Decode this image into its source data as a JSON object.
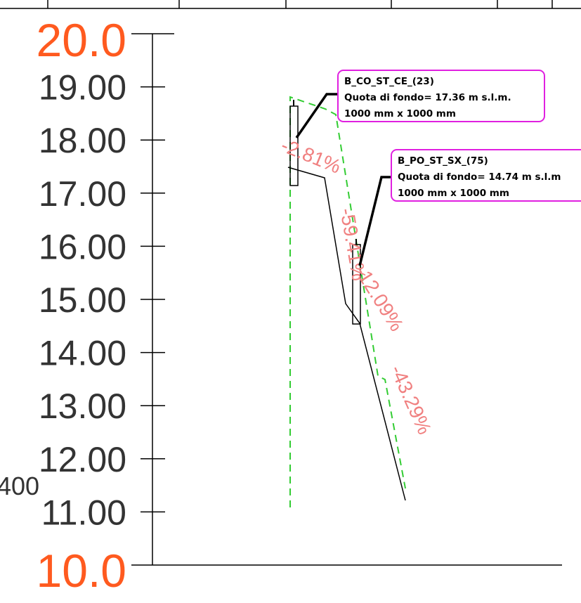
{
  "scale": {
    "major_color": "#ff5a1f",
    "minor_color": "#333333",
    "top_label": "20.0",
    "bottom_label": "10.0",
    "tick_labels": [
      "19.00",
      "18.00",
      "17.00",
      "16.00",
      "15.00",
      "14.00",
      "13.00",
      "12.00",
      "11.00"
    ],
    "side_label": "400"
  },
  "profile": {
    "slope_color": "#f08080",
    "dash_color": "#33cc33",
    "box_border_color": "#e020e0",
    "slopes": [
      "-2.81%",
      "-59.41%",
      "-12.09%",
      "-43.29%"
    ]
  },
  "callouts": [
    {
      "title": "B_CO_ST_CE_(23)",
      "line1": "Quota di fondo= 17.36 m s.l.m.",
      "line2": "1000 mm x 1000 mm"
    },
    {
      "title": "B_PO_ST_SX_(75)",
      "line1": "Quota di fondo= 14.74 m s.l.m",
      "line2": "1000 mm x 1000 mm"
    }
  ]
}
